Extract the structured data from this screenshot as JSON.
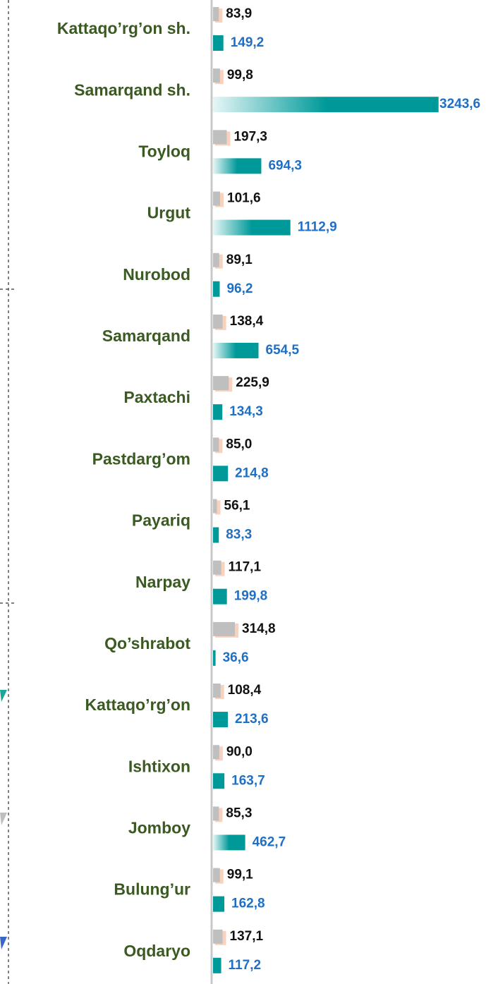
{
  "chart_data": {
    "type": "bar",
    "orientation": "horizontal",
    "categories": [
      "Kattaqo’rg’on sh.",
      "Samarqand sh.",
      "Toyloq",
      "Urgut",
      "Nurobod",
      "Samarqand",
      "Paxtachi",
      "Pastdarg’om",
      "Payariq",
      "Narpay",
      "Qo’shrabot",
      "Kattaqo’rg’on",
      "Ishtixon",
      "Jomboy",
      "Bulung’ur",
      "Oqdaryo"
    ],
    "series": [
      {
        "color": "#bfbfbf",
        "values": [
          83.9,
          99.8,
          197.3,
          101.6,
          89.1,
          138.4,
          225.9,
          85.0,
          56.1,
          117.1,
          314.8,
          108.4,
          90.0,
          85.3,
          99.1,
          137.1
        ],
        "value_labels": [
          "83,9",
          "99,8",
          "197,3",
          "101,6",
          "89,1",
          "138,4",
          "225,9",
          "85,0",
          "56,1",
          "117,1",
          "314,8",
          "108,4",
          "90,0",
          "85,3",
          "99,1",
          "137,1"
        ]
      },
      {
        "color": "#009999",
        "values": [
          149.2,
          3243.6,
          694.3,
          1112.9,
          96.2,
          654.5,
          134.3,
          214.8,
          83.3,
          199.8,
          36.6,
          213.6,
          163.7,
          462.7,
          162.8,
          117.2
        ],
        "value_labels": [
          "149,2",
          "3243,6",
          "694,3",
          "1112,9",
          "96,2",
          "654,5",
          "134,3",
          "214,8",
          "83,3",
          "199,8",
          "36,6",
          "213,6",
          "163,7",
          "462,7",
          "162,8",
          "117,2"
        ]
      }
    ],
    "xlim": [
      0,
      3500
    ]
  }
}
